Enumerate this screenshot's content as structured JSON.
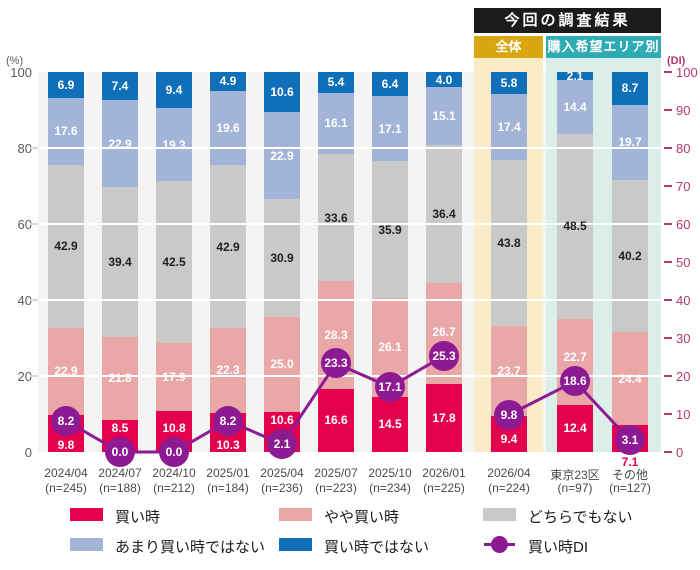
{
  "chart_data": {
    "type": "bar",
    "subtype": "100-percent-stacked-column-with-di-line",
    "unit_left": "(%)",
    "unit_right": "(DI)",
    "ylim": [
      0,
      100
    ],
    "grid_step": 20,
    "grid_on": true,
    "plot_bg": "#f4f4f2",
    "axis_color_left": "#5a5a5a",
    "axis_color_right": "#b23a72",
    "left_ticks": [
      100,
      80,
      60,
      40,
      20,
      0
    ],
    "right_ticks": [
      100,
      90,
      80,
      70,
      60,
      50,
      40,
      30,
      20,
      10,
      0
    ],
    "categories": [
      "2024/04",
      "2024/07",
      "2024/10",
      "2025/01",
      "2025/04",
      "2025/07",
      "2025/10",
      "2026/01",
      "2026/04",
      "東京23区",
      "その他"
    ],
    "sample_sizes": [
      "(n=245)",
      "(n=188)",
      "(n=212)",
      "(n=184)",
      "(n=236)",
      "(n=223)",
      "(n=234)",
      "(n=225)",
      "(n=224)",
      "(n=97)",
      "(n=127)"
    ],
    "series": [
      {
        "name": "買い時",
        "color": "#e5004f",
        "label_color": "#ffffff",
        "values": [
          9.8,
          8.5,
          10.8,
          10.3,
          10.6,
          16.6,
          14.5,
          17.8,
          9.4,
          12.4,
          7.1
        ]
      },
      {
        "name": "やや買い時",
        "color": "#eaa7a8",
        "label_color": "#ffffff",
        "values": [
          22.9,
          21.8,
          17.9,
          22.3,
          25.0,
          28.3,
          26.1,
          26.7,
          23.7,
          22.7,
          24.4
        ]
      },
      {
        "name": "どちらでもない",
        "color": "#c9c9c8",
        "label_color": "#1f1f1f",
        "values": [
          42.9,
          39.4,
          42.5,
          42.9,
          30.9,
          33.6,
          35.9,
          36.4,
          43.8,
          48.5,
          40.2
        ]
      },
      {
        "name": "あまり買い時ではない",
        "color": "#a2b4d8",
        "label_color": "#ffffff",
        "values": [
          17.6,
          22.9,
          19.3,
          19.6,
          22.9,
          16.1,
          17.1,
          15.1,
          17.4,
          14.4,
          19.7
        ]
      },
      {
        "name": "買い時ではない",
        "color": "#0f6fb8",
        "label_color": "#ffffff",
        "values": [
          6.9,
          7.4,
          9.4,
          4.9,
          10.6,
          5.4,
          6.4,
          4.0,
          5.8,
          2.1,
          8.7
        ]
      }
    ],
    "line": {
      "name": "買い時DI",
      "color": "#8d1a93",
      "values": [
        8.2,
        0.0,
        0.0,
        8.2,
        2.1,
        23.3,
        17.1,
        25.3,
        9.8,
        18.6,
        3.1
      ],
      "segments": [
        [
          0,
          7
        ],
        [
          8,
          10
        ]
      ]
    },
    "highlight": {
      "title": "今回の調査結果",
      "title_bg": "#1b1b1b",
      "groups": [
        {
          "label": "全体",
          "bg": "#d8a610",
          "band": "#faecc9",
          "start": 8,
          "end": 8
        },
        {
          "label": "購入希望エリア別",
          "bg": "#2fabb4",
          "band": "#dceeea",
          "start": 9,
          "end": 10
        }
      ]
    },
    "outside_bottom_labels": [
      10
    ]
  }
}
